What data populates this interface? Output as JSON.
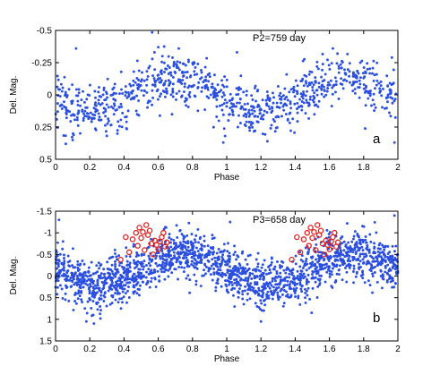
{
  "chart_data": [
    {
      "type": "scatter",
      "title": "",
      "annotation": "P2=759 day",
      "panel_label": "a",
      "xlabel": "Phase",
      "ylabel": "Del. Mag.",
      "xlim": [
        0,
        2
      ],
      "ylim": [
        -0.5,
        0.5
      ],
      "y_inverted": true,
      "x_ticks": [
        "0",
        "0.2",
        "0.4",
        "0.6",
        "0.8",
        "1",
        "1.2",
        "1.4",
        "1.6",
        "1.8",
        "2"
      ],
      "y_ticks": [
        "-0.5",
        "-0.25",
        "0",
        "0.25",
        "0.5"
      ],
      "grid": false,
      "series": [
        {
          "color": "#2a4fe0",
          "marker": "filled-dot",
          "model": {
            "offset": 0.0,
            "amplitude": 0.13,
            "period": 1,
            "peak_phase": 0.7,
            "scatter": 0.12,
            "count": 900
          },
          "points": [
            [
              0.06,
              0.38
            ],
            [
              0.12,
              -0.36
            ],
            [
              0.1,
              0.35
            ],
            [
              0.6,
              -0.37
            ],
            [
              0.72,
              -0.36
            ],
            [
              0.98,
              0.37
            ],
            [
              1.06,
              -0.33
            ],
            [
              1.62,
              -0.36
            ],
            [
              1.98,
              0.37
            ]
          ]
        }
      ]
    },
    {
      "type": "scatter",
      "title": "",
      "annotation": "P3=658 day",
      "panel_label": "b",
      "xlabel": "Phase",
      "ylabel": "Del. Mag.",
      "xlim": [
        0,
        2
      ],
      "ylim": [
        -1.5,
        1.5
      ],
      "y_inverted": true,
      "x_ticks": [
        "0",
        "0.2",
        "0.4",
        "0.6",
        "0.8",
        "1",
        "1.2",
        "1.4",
        "1.6",
        "1.8",
        "2"
      ],
      "y_ticks": [
        "-1.5",
        "-1",
        "-0.5",
        "0",
        "0.5",
        "1",
        "1.5"
      ],
      "grid": false,
      "series": [
        {
          "color": "#2a4fe0",
          "marker": "filled-dot",
          "model": {
            "offset": -0.15,
            "amplitude": 0.35,
            "period": 1,
            "peak_phase": 0.75,
            "scatter": 0.33,
            "count": 1800
          },
          "points": [
            [
              0.02,
              -1.3
            ],
            [
              0.18,
              1.05
            ],
            [
              0.22,
              0.9
            ],
            [
              1.02,
              -1.25
            ],
            [
              1.2,
              1.05
            ],
            [
              1.98,
              -1.4
            ]
          ]
        },
        {
          "color": "#e02020",
          "marker": "open-circle",
          "points": [
            [
              0.38,
              -0.38
            ],
            [
              0.41,
              -0.9
            ],
            [
              0.43,
              -0.55
            ],
            [
              0.45,
              -0.85
            ],
            [
              0.47,
              -1.0
            ],
            [
              0.48,
              -0.7
            ],
            [
              0.49,
              -1.12
            ],
            [
              0.5,
              -0.88
            ],
            [
              0.51,
              -1.02
            ],
            [
              0.52,
              -0.6
            ],
            [
              0.53,
              -1.18
            ],
            [
              0.54,
              -0.95
            ],
            [
              0.55,
              -1.05
            ],
            [
              0.56,
              -0.75
            ],
            [
              0.57,
              -0.5
            ],
            [
              0.58,
              -0.82
            ],
            [
              0.59,
              -0.72
            ],
            [
              0.6,
              -0.62
            ],
            [
              0.61,
              -0.8
            ],
            [
              0.62,
              -0.9
            ],
            [
              0.63,
              -1.0
            ],
            [
              0.64,
              -0.68
            ],
            [
              0.65,
              -0.78
            ],
            [
              1.38,
              -0.38
            ],
            [
              1.41,
              -0.9
            ],
            [
              1.43,
              -0.55
            ],
            [
              1.45,
              -0.85
            ],
            [
              1.47,
              -1.0
            ],
            [
              1.48,
              -0.7
            ],
            [
              1.49,
              -1.12
            ],
            [
              1.5,
              -0.88
            ],
            [
              1.51,
              -1.02
            ],
            [
              1.52,
              -0.6
            ],
            [
              1.53,
              -1.18
            ],
            [
              1.54,
              -0.95
            ],
            [
              1.55,
              -1.05
            ],
            [
              1.56,
              -0.75
            ],
            [
              1.57,
              -0.5
            ],
            [
              1.58,
              -0.82
            ],
            [
              1.59,
              -0.72
            ],
            [
              1.6,
              -0.62
            ],
            [
              1.61,
              -0.8
            ],
            [
              1.62,
              -0.9
            ],
            [
              1.63,
              -1.0
            ],
            [
              1.64,
              -0.68
            ],
            [
              1.65,
              -0.78
            ]
          ]
        }
      ]
    }
  ]
}
